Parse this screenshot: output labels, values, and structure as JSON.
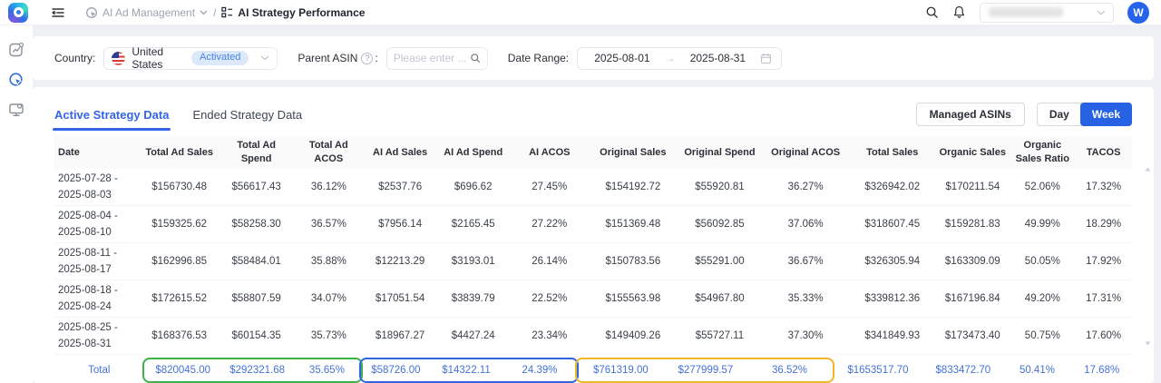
{
  "topbar": {
    "breadcrumb_parent": "AI Ad Management",
    "breadcrumb_current": "AI Strategy Performance",
    "avatar_initial": "W"
  },
  "icons": {
    "help_glyph": "?",
    "sidebar": [
      "chart-panel-icon",
      "ad-target-icon",
      "monitor-settings-icon"
    ]
  },
  "filters": {
    "country_label": "Country:",
    "country_value": "United States",
    "country_badge": "Activated",
    "parent_asin_label": "Parent ASIN",
    "parent_asin_colon": ":",
    "parent_asin_placeholder": "Please enter ...",
    "date_range_label": "Date Range:",
    "date_start": "2025-08-01",
    "date_separator": "→",
    "date_end": "2025-08-31"
  },
  "tabs": {
    "items": [
      {
        "label": "Active Strategy Data",
        "active": true
      },
      {
        "label": "Ended Strategy Data",
        "active": false
      }
    ]
  },
  "toolbar": {
    "managed_asins": "Managed ASINs",
    "day": "Day",
    "week": "Week"
  },
  "table": {
    "columns": [
      "Date",
      "Total Ad Sales",
      "Total Ad Spend",
      "Total Ad ACOS",
      "AI Ad Sales",
      "AI Ad Spend",
      "AI ACOS",
      "Original Sales",
      "Original Spend",
      "Original ACOS",
      "Total Sales",
      "Organic Sales",
      "Organic Sales Ratio",
      "TACOS"
    ],
    "rows": [
      {
        "date": "2025-07-28 - 2025-08-03",
        "values": [
          "$156730.48",
          "$56617.43",
          "36.12%",
          "$2537.76",
          "$696.62",
          "27.45%",
          "$154192.72",
          "$55920.81",
          "36.27%",
          "$326942.02",
          "$170211.54",
          "52.06%",
          "17.32%"
        ]
      },
      {
        "date": "2025-08-04 - 2025-08-10",
        "values": [
          "$159325.62",
          "$58258.30",
          "36.57%",
          "$7956.14",
          "$2165.45",
          "27.22%",
          "$151369.48",
          "$56092.85",
          "37.06%",
          "$318607.45",
          "$159281.83",
          "49.99%",
          "18.29%"
        ]
      },
      {
        "date": "2025-08-11 - 2025-08-17",
        "values": [
          "$162996.85",
          "$58484.01",
          "35.88%",
          "$12213.29",
          "$3193.01",
          "26.14%",
          "$150783.56",
          "$55291.00",
          "36.67%",
          "$326305.94",
          "$163309.09",
          "50.05%",
          "17.92%"
        ]
      },
      {
        "date": "2025-08-18 - 2025-08-24",
        "values": [
          "$172615.52",
          "$58807.59",
          "34.07%",
          "$17051.54",
          "$3839.79",
          "22.52%",
          "$155563.98",
          "$54967.80",
          "35.33%",
          "$339812.36",
          "$167196.84",
          "49.20%",
          "17.31%"
        ]
      },
      {
        "date": "2025-08-25 - 2025-08-31",
        "values": [
          "$168376.53",
          "$60154.35",
          "35.73%",
          "$18967.27",
          "$4427.24",
          "23.34%",
          "$149409.26",
          "$55727.11",
          "37.30%",
          "$341849.93",
          "$173473.40",
          "50.75%",
          "17.60%"
        ]
      }
    ],
    "total": {
      "label": "Total",
      "values": [
        "$820045.00",
        "$292321.68",
        "35.65%",
        "$58726.00",
        "$14322.11",
        "24.39%",
        "$761319.00",
        "$277999.57",
        "36.52%",
        "$1653517.70",
        "$833472.70",
        "50.41%",
        "17.68%"
      ],
      "groups": [
        {
          "start": 0,
          "end": 2,
          "color_key": "green_box"
        },
        {
          "start": 3,
          "end": 5,
          "color_key": "blue_box"
        },
        {
          "start": 6,
          "end": 8,
          "color_key": "yellow_box"
        }
      ]
    }
  },
  "colors": {
    "accent": "#3565e5",
    "total_text": "#4472d6",
    "green_box": "#3db249",
    "blue_box": "#2f66e0",
    "yellow_box": "#f0b62a",
    "badge_bg": "#dce9fb",
    "badge_text": "#4a82e8"
  }
}
